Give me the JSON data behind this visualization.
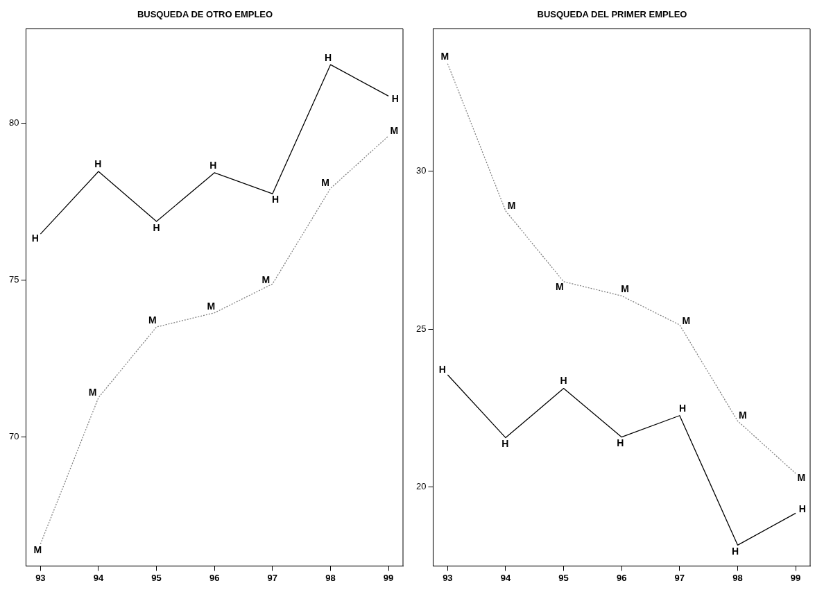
{
  "chart_data": [
    {
      "type": "line",
      "title": "BUSQUEDA DE OTRO EMPLEO",
      "x": [
        93,
        94,
        95,
        96,
        97,
        98,
        99
      ],
      "xlim": [
        92.75,
        99.25
      ],
      "xticks": [
        93,
        94,
        95,
        96,
        97,
        98,
        99
      ],
      "ylim": [
        65.9,
        83.0
      ],
      "yticks": [
        70,
        75,
        80
      ],
      "grid": false,
      "legend": false,
      "marker": "none",
      "series": [
        {
          "name": "H",
          "color": "#000000",
          "line_style": "solid",
          "values": [
            76.47,
            78.46,
            76.87,
            78.42,
            77.75,
            81.86,
            80.86
          ]
        },
        {
          "name": "M",
          "color": "#808080",
          "line_style": "dotted",
          "values": [
            66.6,
            71.26,
            73.51,
            73.96,
            74.88,
            77.92,
            79.59
          ]
        }
      ]
    },
    {
      "type": "line",
      "title": "BUSQUEDA DEL PRIMER EMPLEO",
      "x": [
        93,
        94,
        95,
        96,
        97,
        98,
        99
      ],
      "xlim": [
        92.75,
        99.25
      ],
      "xticks": [
        93,
        94,
        95,
        96,
        97,
        98,
        99
      ],
      "ylim": [
        17.5,
        34.5
      ],
      "yticks": [
        20,
        25,
        30
      ],
      "grid": false,
      "legend": false,
      "marker": "none",
      "series": [
        {
          "name": "H",
          "color": "#000000",
          "line_style": "solid",
          "values": [
            23.55,
            21.56,
            23.12,
            21.58,
            22.26,
            18.16,
            19.17
          ]
        },
        {
          "name": "M",
          "color": "#808080",
          "line_style": "dotted",
          "values": [
            33.4,
            28.74,
            26.5,
            26.05,
            25.13,
            22.09,
            20.43
          ]
        }
      ]
    }
  ]
}
